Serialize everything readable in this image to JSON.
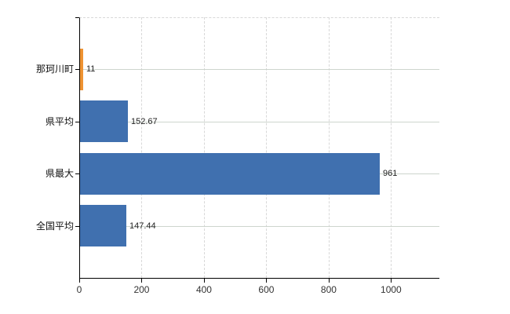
{
  "colors": {
    "background": "#ffffff",
    "axis": "#000000",
    "grid_horizontal": "#cdd5cd",
    "grid_vertical": "#d8d8d8",
    "bar_blue": "#4070af",
    "bar_orange": "#ee9333",
    "value_text": "#222222",
    "tick_text": "#333333"
  },
  "chart_data": {
    "type": "bar",
    "orientation": "horizontal",
    "title": "",
    "xlabel": "",
    "ylabel": "",
    "categories": [
      "那珂川町",
      "県平均",
      "県最大",
      "全国平均"
    ],
    "values": [
      11,
      152.67,
      961,
      147.44
    ],
    "data_labels": [
      "11",
      "152.67",
      "961",
      "147.44"
    ],
    "bar_colors": [
      "#ee9333",
      "#4070af",
      "#4070af",
      "#4070af"
    ],
    "xlim": [
      0,
      1155
    ],
    "xticks": [
      0,
      200,
      400,
      600,
      800,
      1000
    ],
    "xtick_labels": [
      "0",
      "200",
      "400",
      "600",
      "800",
      "1000"
    ],
    "grid": {
      "vertical_style": "dashed",
      "horizontal_style": "solid"
    },
    "legend": "none"
  }
}
